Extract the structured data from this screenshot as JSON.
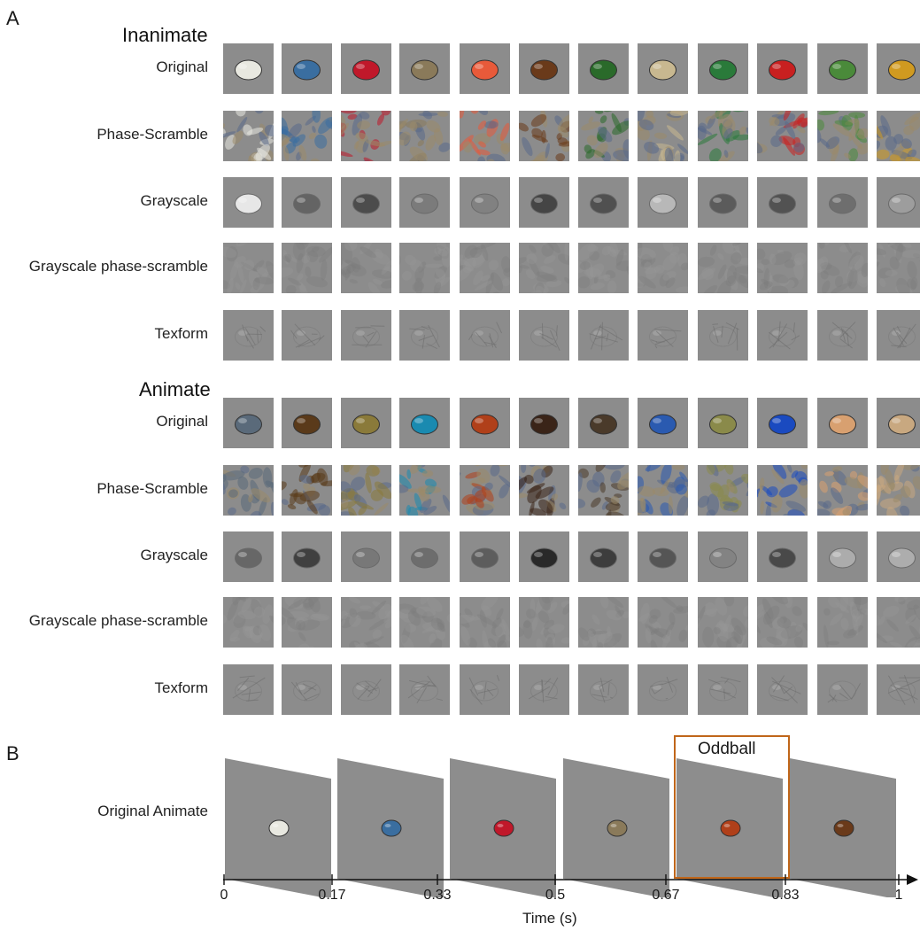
{
  "panel_a": {
    "letter": "A",
    "sections": [
      {
        "title": "Inanimate",
        "rows": [
          "Original",
          "Phase-Scramble",
          "Grayscale",
          "Grayscale phase-scramble",
          "Texform"
        ],
        "objects": [
          "flower-icon",
          "car-icon",
          "cherry-icon",
          "tower-icon",
          "peach-icon",
          "pipe-icon",
          "cucumber-icon",
          "surfboard-icon",
          "pool-table-icon",
          "teapot-icon",
          "cactus-icon",
          "airplane-icon"
        ],
        "colors": [
          "#e8e8e0",
          "#3a6ea0",
          "#c0182a",
          "#8a7a5a",
          "#e85a3a",
          "#6a3a1a",
          "#2a6a2a",
          "#c8b890",
          "#2a7a3a",
          "#c82020",
          "#4a8a3a",
          "#d09a20"
        ]
      },
      {
        "title": "Animate",
        "rows": [
          "Original",
          "Phase-Scramble",
          "Grayscale",
          "Grayscale phase-scramble",
          "Texform"
        ],
        "objects": [
          "dolphin-icon",
          "bear-icon",
          "tortoise-icon",
          "peacock-icon",
          "red-panda-icon",
          "chimpanzee-icon",
          "wild-dog-icon",
          "blue-jay-icon",
          "frog-icon",
          "tang-fish-icon",
          "rodent-icon",
          "owl-icon"
        ],
        "colors": [
          "#5a6a7a",
          "#5a3a1a",
          "#8a7a3a",
          "#1a8ab0",
          "#b0401a",
          "#3a2418",
          "#4a3a2a",
          "#2a5ab0",
          "#8a8a4a",
          "#1a4ac0",
          "#d8a070",
          "#c8a880"
        ]
      }
    ]
  },
  "panel_b": {
    "letter": "B",
    "row_label": "Original Animate",
    "oddball_label": "Oddball",
    "frames": [
      "flower-icon",
      "car-icon",
      "cherry-icon",
      "tower-icon",
      "red-panda-icon",
      "pipe-icon"
    ],
    "oddball_index": 4,
    "timeline": {
      "xlabel": "Time (s)",
      "ticks": [
        "0",
        "0.17",
        "0.33",
        "0.5",
        "0.67",
        "0.83",
        "1"
      ]
    }
  }
}
